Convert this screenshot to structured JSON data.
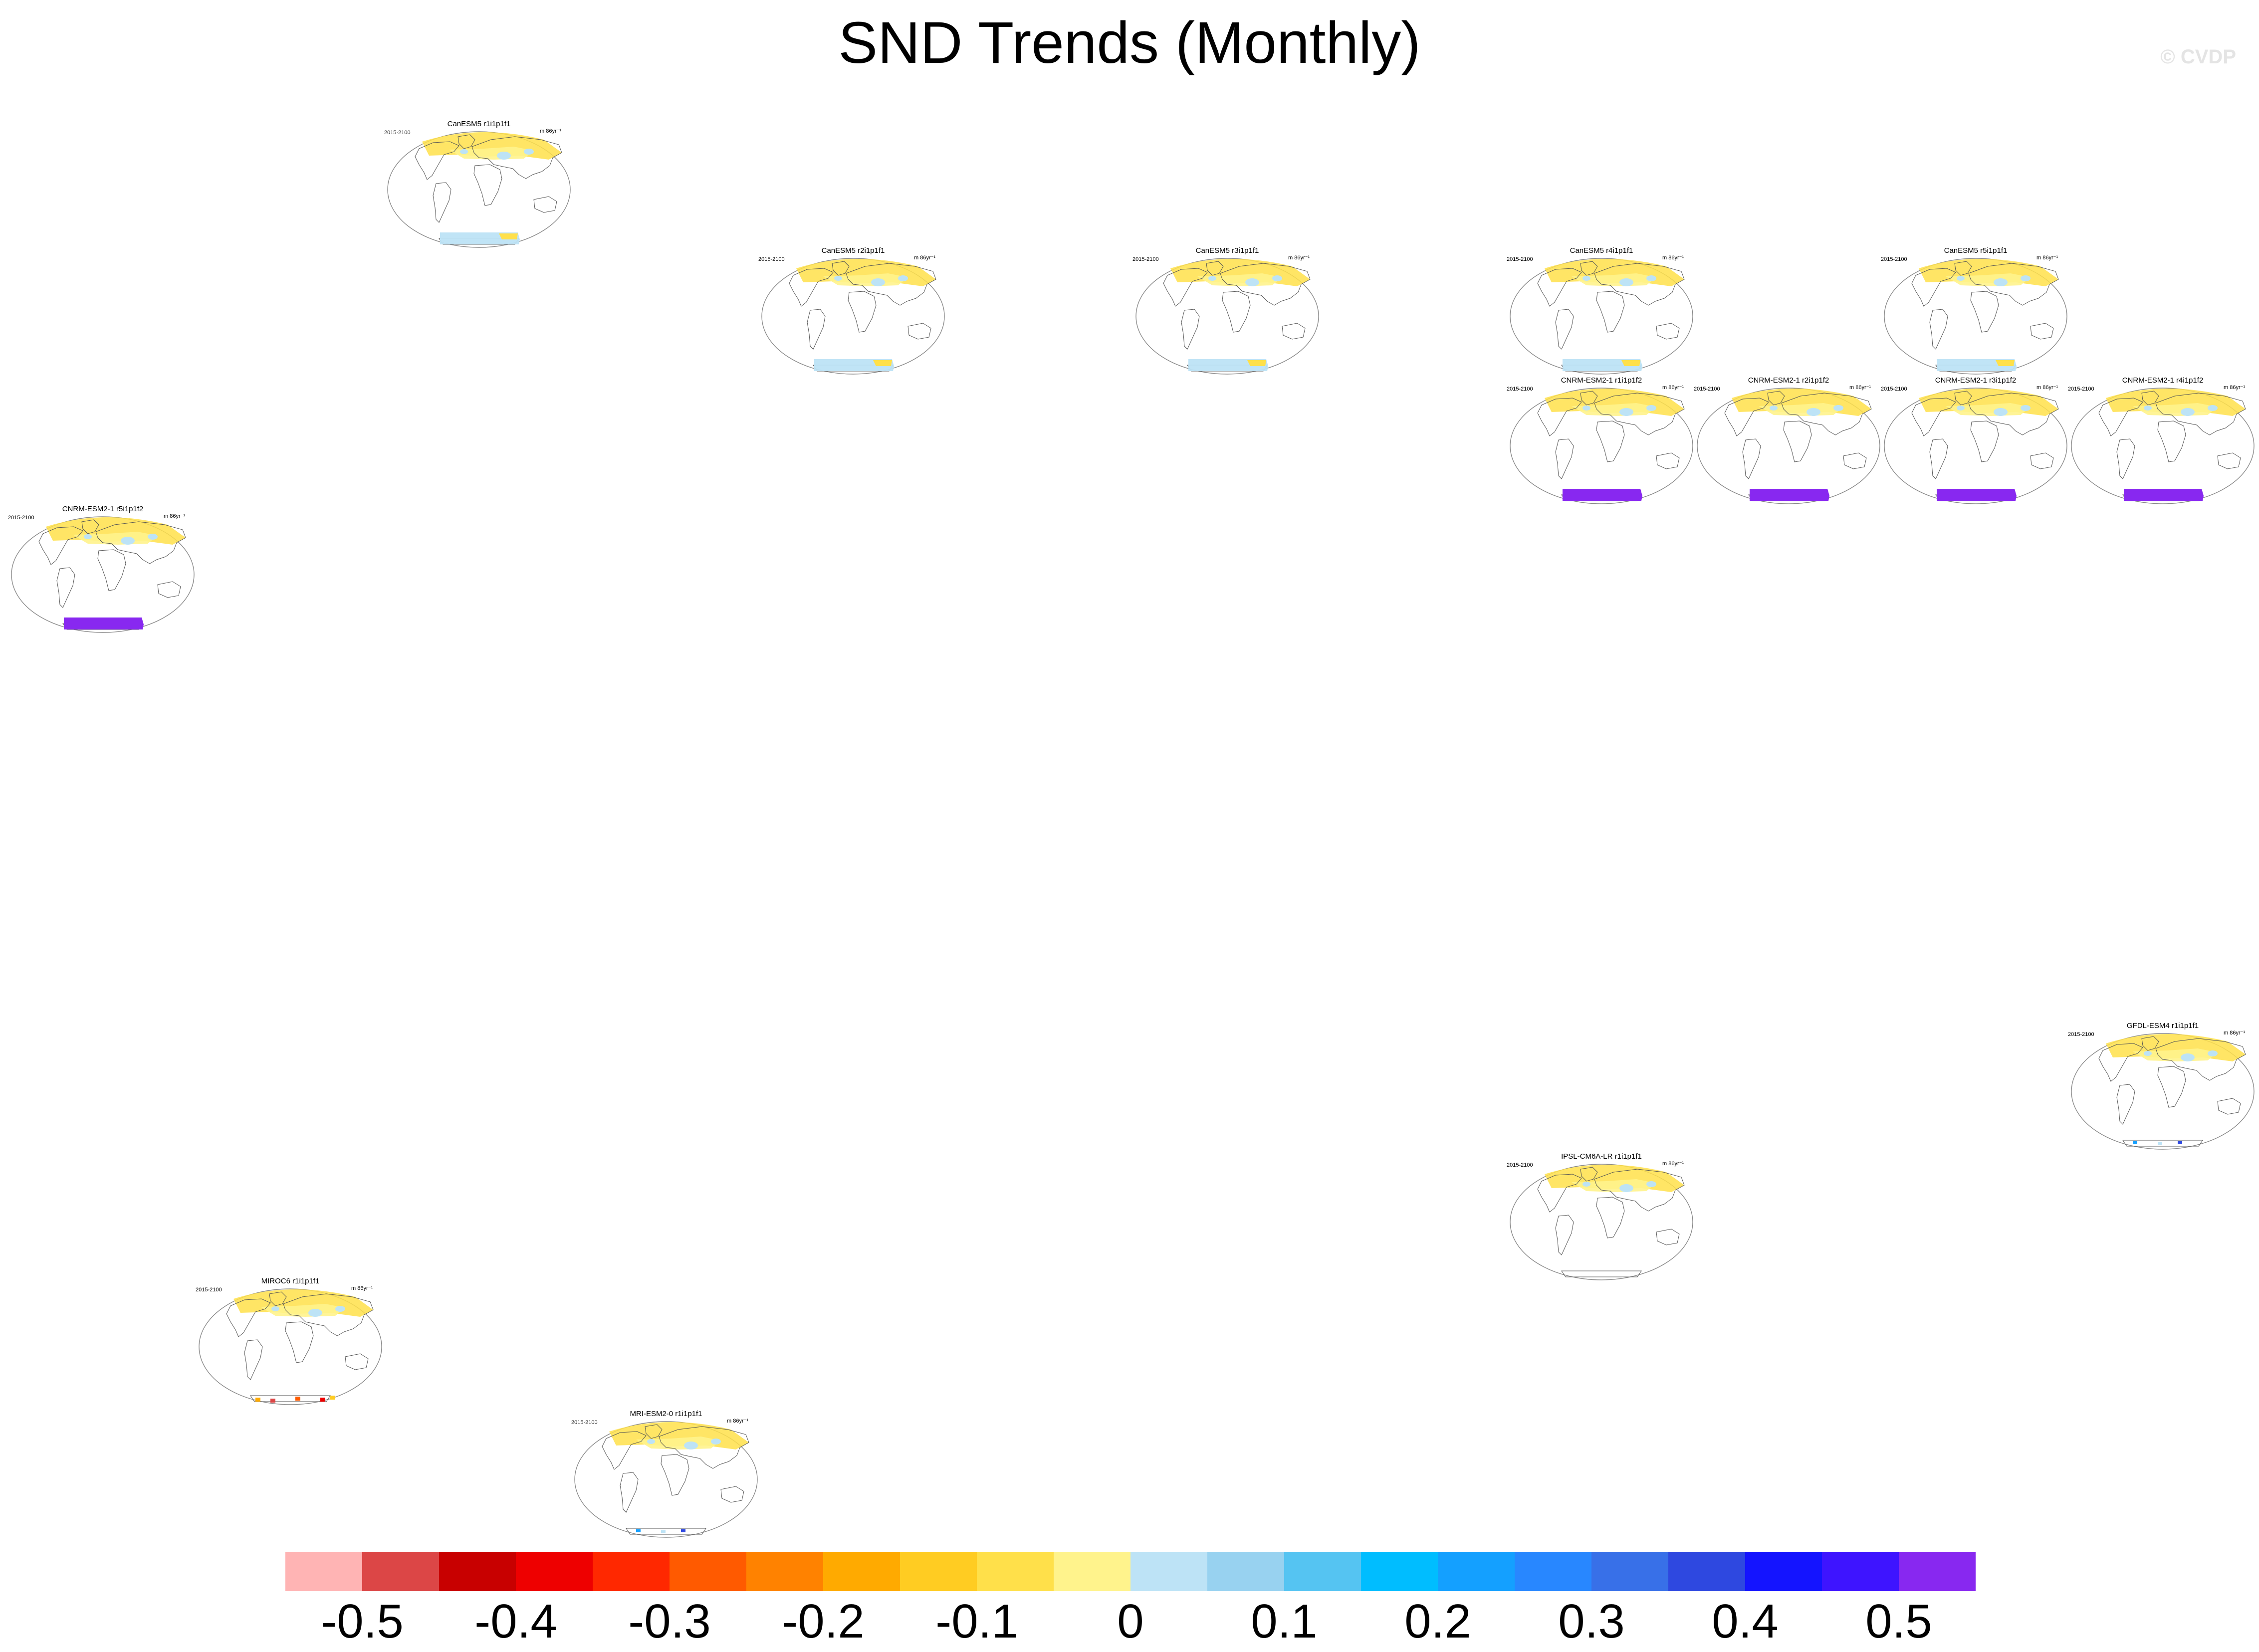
{
  "title": "SND Trends (Monthly)",
  "watermark": "© CVDP",
  "panels": [
    {
      "title": "CanESM5 r1i1p1f1",
      "period": "2015-2100",
      "units": "m 86yr⁻¹",
      "antarctic": "light"
    },
    {
      "title": "CanESM5 r2i1p1f1",
      "period": "2015-2100",
      "units": "m 86yr⁻¹",
      "antarctic": "light"
    },
    {
      "title": "CanESM5 r3i1p1f1",
      "period": "2015-2100",
      "units": "m 86yr⁻¹",
      "antarctic": "light"
    },
    {
      "title": "CanESM5 r4i1p1f1",
      "period": "2015-2100",
      "units": "m 86yr⁻¹",
      "antarctic": "light"
    },
    {
      "title": "CanESM5 r5i1p1f1",
      "period": "2015-2100",
      "units": "m 86yr⁻¹",
      "antarctic": "light"
    },
    {
      "title": "CNRM-ESM2-1 r1i1p1f2",
      "period": "2015-2100",
      "units": "m 86yr⁻¹",
      "antarctic": "purple"
    },
    {
      "title": "CNRM-ESM2-1 r2i1p1f2",
      "period": "2015-2100",
      "units": "m 86yr⁻¹",
      "antarctic": "purple"
    },
    {
      "title": "CNRM-ESM2-1 r3i1p1f2",
      "period": "2015-2100",
      "units": "m 86yr⁻¹",
      "antarctic": "purple"
    },
    {
      "title": "CNRM-ESM2-1 r4i1p1f2",
      "period": "2015-2100",
      "units": "m 86yr⁻¹",
      "antarctic": "purple"
    },
    {
      "title": "CNRM-ESM2-1 r5i1p1f2",
      "period": "2015-2100",
      "units": "m 86yr⁻¹",
      "antarctic": "purple"
    },
    {
      "title": "GFDL-ESM4 r1i1p1f1",
      "period": "2015-2100",
      "units": "m 86yr⁻¹",
      "antarctic": "sparse"
    },
    {
      "title": "IPSL-CM6A-LR r1i1p1f1",
      "period": "2015-2100",
      "units": "m 86yr⁻¹",
      "antarctic": "none"
    },
    {
      "title": "MIROC6 r1i1p1f1",
      "period": "2015-2100",
      "units": "m 86yr⁻¹",
      "antarctic": "red"
    },
    {
      "title": "MRI-ESM2-0 r1i1p1f1",
      "period": "2015-2100",
      "units": "m 86yr⁻¹",
      "antarctic": "sparse"
    }
  ],
  "colorbar": {
    "colors": [
      "#ffb4b4",
      "#dc4646",
      "#c80000",
      "#ee0000",
      "#ff2800",
      "#ff5a00",
      "#ff8200",
      "#ffaa00",
      "#ffcc22",
      "#ffe04a",
      "#fff38c",
      "#bde3f6",
      "#98d2f0",
      "#55c4f2",
      "#00bdff",
      "#14a0ff",
      "#2887ff",
      "#3870e8",
      "#2e48e0",
      "#1414ff",
      "#3e14ff",
      "#8828f0"
    ],
    "labels": [
      "-0.5",
      "-0.4",
      "-0.3",
      "-0.2",
      "-0.1",
      "0",
      "0.1",
      "0.2",
      "0.3",
      "0.4",
      "0.5"
    ]
  }
}
